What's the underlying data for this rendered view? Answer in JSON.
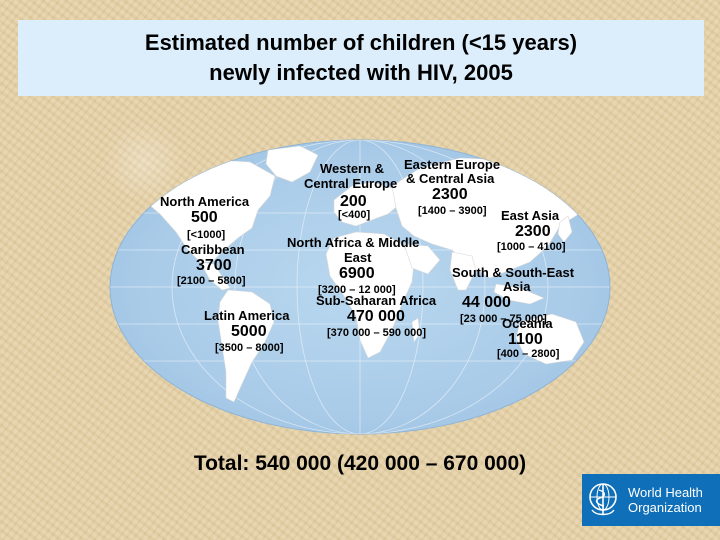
{
  "title": {
    "line1": "Estimated number of children (<15 years)",
    "line2": "newly infected with HIV, 2005"
  },
  "regions": {
    "north_america": {
      "name": "North America",
      "value": "500",
      "range": "[<1000]"
    },
    "caribbean": {
      "name": "Caribbean",
      "value": "3700",
      "range": "[2100 – 5800]"
    },
    "latin_america": {
      "name": "Latin America",
      "value": "5000",
      "range": "[3500 – 8000]"
    },
    "western_central_europe": {
      "name_line1": "Western &",
      "name_line2": "Central Europe",
      "value": "200",
      "range": "[<400]"
    },
    "eastern_europe_central_asia": {
      "name_line1": "Eastern Europe",
      "name_line2": "& Central Asia",
      "value": "2300",
      "range": "[1400 – 3900]"
    },
    "north_africa_middle_east": {
      "name_line1": "North Africa & Middle",
      "name_line2": "East",
      "value": "6900",
      "range": "[3200 – 12 000]"
    },
    "sub_saharan_africa": {
      "name": "Sub-Saharan Africa",
      "value": "470 000",
      "range": "[370 000 – 590 000]"
    },
    "east_asia": {
      "name": "East Asia",
      "value": "2300",
      "range": "[1000 – 4100]"
    },
    "south_southeast_asia": {
      "name_line1": "South & South-East",
      "name_line2": "Asia",
      "value": "44 000",
      "range": "[23 000 – 75 000]"
    },
    "oceania": {
      "name": "Oceania",
      "value": "1100",
      "range": "[400 – 2800]"
    }
  },
  "total": "Total: 540 000 (420 000 – 670 000)",
  "logo": {
    "line1": "World Health",
    "line2": "Organization"
  },
  "colors": {
    "ocean": "#aacde8",
    "ocean_edge": "#c9e0f2",
    "land": "#ffffff",
    "title_bg": "#dceefb",
    "who_blue": "#0f6fb8"
  }
}
